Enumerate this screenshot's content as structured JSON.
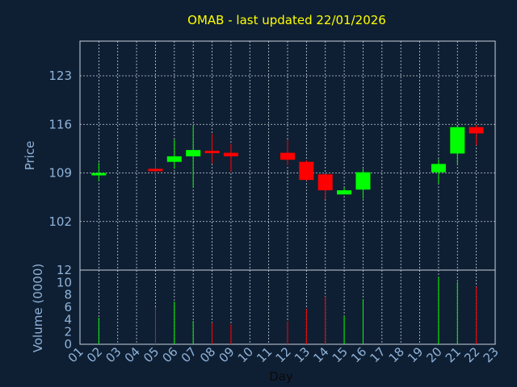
{
  "chart_data": {
    "type": "candlestick",
    "title": "OMAB - last updated 22/01/2026",
    "xlabel": "Day",
    "ylabel": "Price",
    "volume_label": "Volume (0000)",
    "x_ticks": [
      "01",
      "02",
      "03",
      "04",
      "05",
      "06",
      "07",
      "08",
      "09",
      "10",
      "11",
      "12",
      "13",
      "14",
      "15",
      "16",
      "17",
      "18",
      "19",
      "20",
      "21",
      "22",
      "23"
    ],
    "price_ticks": [
      102,
      109,
      116,
      123
    ],
    "price_range": [
      95,
      128
    ],
    "volume_ticks": [
      0,
      2,
      4,
      6,
      8,
      10,
      12
    ],
    "volume_range": [
      0,
      12
    ],
    "grid": true,
    "up_color": "#00ff00",
    "down_color": "#ff0000",
    "candles": [
      {
        "day": 2,
        "open": 109.0,
        "high": 110.5,
        "low": 107.8,
        "close": 109.0,
        "volume": 4.3
      },
      {
        "day": 5,
        "open": 109.6,
        "high": 111.0,
        "low": 108.3,
        "close": 109.3,
        "volume": 6.0
      },
      {
        "day": 6,
        "open": 110.6,
        "high": 113.8,
        "low": 109.6,
        "close": 111.4,
        "volume": 6.9
      },
      {
        "day": 7,
        "open": 111.4,
        "high": 115.8,
        "low": 106.9,
        "close": 112.3,
        "volume": 3.8
      },
      {
        "day": 8,
        "open": 112.2,
        "high": 114.6,
        "low": 110.4,
        "close": 111.9,
        "volume": 3.5
      },
      {
        "day": 9,
        "open": 111.9,
        "high": 113.2,
        "low": 109.2,
        "close": 111.4,
        "volume": 3.2
      },
      {
        "day": 12,
        "open": 111.9,
        "high": 113.8,
        "low": 110.1,
        "close": 110.9,
        "volume": 3.7
      },
      {
        "day": 13,
        "open": 110.6,
        "high": 110.8,
        "low": 107.9,
        "close": 108.0,
        "volume": 5.7
      },
      {
        "day": 14,
        "open": 108.8,
        "high": 108.9,
        "low": 105.2,
        "close": 106.5,
        "volume": 7.7
      },
      {
        "day": 15,
        "open": 105.9,
        "high": 106.9,
        "low": 105.9,
        "close": 106.5,
        "volume": 4.6
      },
      {
        "day": 16,
        "open": 106.6,
        "high": 109.6,
        "low": 105.3,
        "close": 109.1,
        "volume": 7.3
      },
      {
        "day": 20,
        "open": 109.1,
        "high": 111.0,
        "low": 107.5,
        "close": 110.3,
        "volume": 10.9
      },
      {
        "day": 21,
        "open": 111.8,
        "high": 115.8,
        "low": 110.3,
        "close": 115.6,
        "volume": 10.1
      },
      {
        "day": 22,
        "open": 115.6,
        "high": 115.9,
        "low": 113.0,
        "close": 114.7,
        "volume": 9.3
      }
    ]
  }
}
